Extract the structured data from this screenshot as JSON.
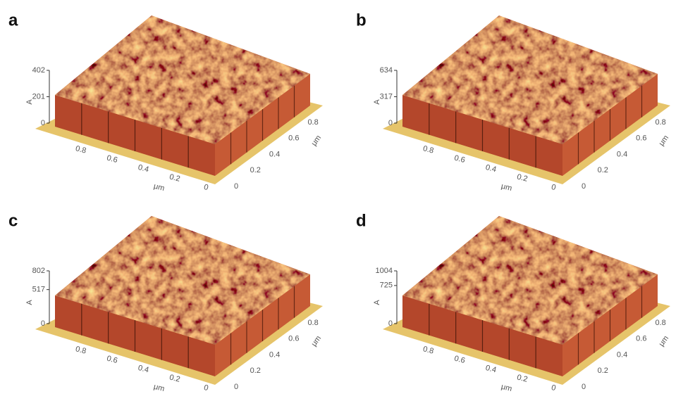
{
  "panels": [
    {
      "label": "a",
      "z_unit": "A",
      "z_ticks": [
        402,
        201,
        0
      ],
      "x_ticks": [
        0.8,
        0.6,
        0.4,
        0.2,
        0
      ],
      "x_unit": "μm",
      "y_ticks": [
        0,
        0.2,
        0.4,
        0.6,
        0.8
      ],
      "y_unit": "μm"
    },
    {
      "label": "b",
      "z_unit": "A",
      "z_ticks": [
        634,
        317,
        0
      ],
      "x_ticks": [
        0.8,
        0.6,
        0.4,
        0.2,
        0
      ],
      "x_unit": "μm",
      "y_ticks": [
        0,
        0.2,
        0.4,
        0.6,
        0.8
      ],
      "y_unit": "μm"
    },
    {
      "label": "c",
      "z_unit": "A",
      "z_ticks": [
        802,
        517,
        0
      ],
      "x_ticks": [
        0.8,
        0.6,
        0.4,
        0.2,
        0
      ],
      "x_unit": "μm",
      "y_ticks": [
        0,
        0.2,
        0.4,
        0.6,
        0.8
      ],
      "y_unit": "μm"
    },
    {
      "label": "d",
      "z_unit": "A",
      "z_ticks": [
        1004,
        725,
        0
      ],
      "x_ticks": [
        0.8,
        0.6,
        0.4,
        0.2,
        0
      ],
      "x_unit": "μm",
      "y_ticks": [
        0,
        0.2,
        0.4,
        0.6,
        0.8
      ],
      "y_unit": "μm"
    }
  ]
}
